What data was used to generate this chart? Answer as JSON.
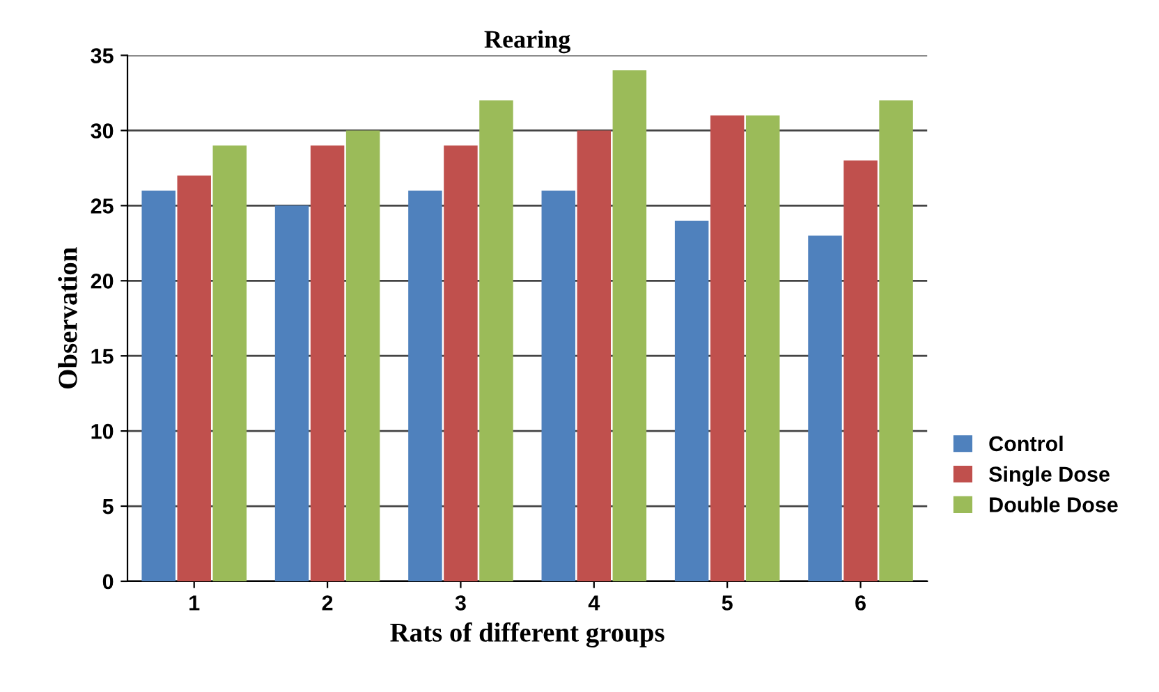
{
  "chart_data": {
    "type": "bar",
    "title": "Rearing",
    "xlabel": "Rats of different groups",
    "ylabel": "Observation",
    "categories": [
      "1",
      "2",
      "3",
      "4",
      "5",
      "6"
    ],
    "series": [
      {
        "name": "Control",
        "color": "#4f81bd",
        "values": [
          26,
          25,
          26,
          26,
          24,
          23
        ]
      },
      {
        "name": "Single Dose",
        "color": "#c0504d",
        "values": [
          27,
          29,
          29,
          30,
          31,
          28
        ]
      },
      {
        "name": "Double Dose",
        "color": "#9bbb59",
        "values": [
          29,
          30,
          32,
          34,
          31,
          32
        ]
      }
    ],
    "ylim": [
      0,
      35
    ],
    "yticks": [
      0,
      5,
      10,
      15,
      20,
      25,
      30,
      35
    ],
    "grid": "y",
    "legend": "right"
  }
}
